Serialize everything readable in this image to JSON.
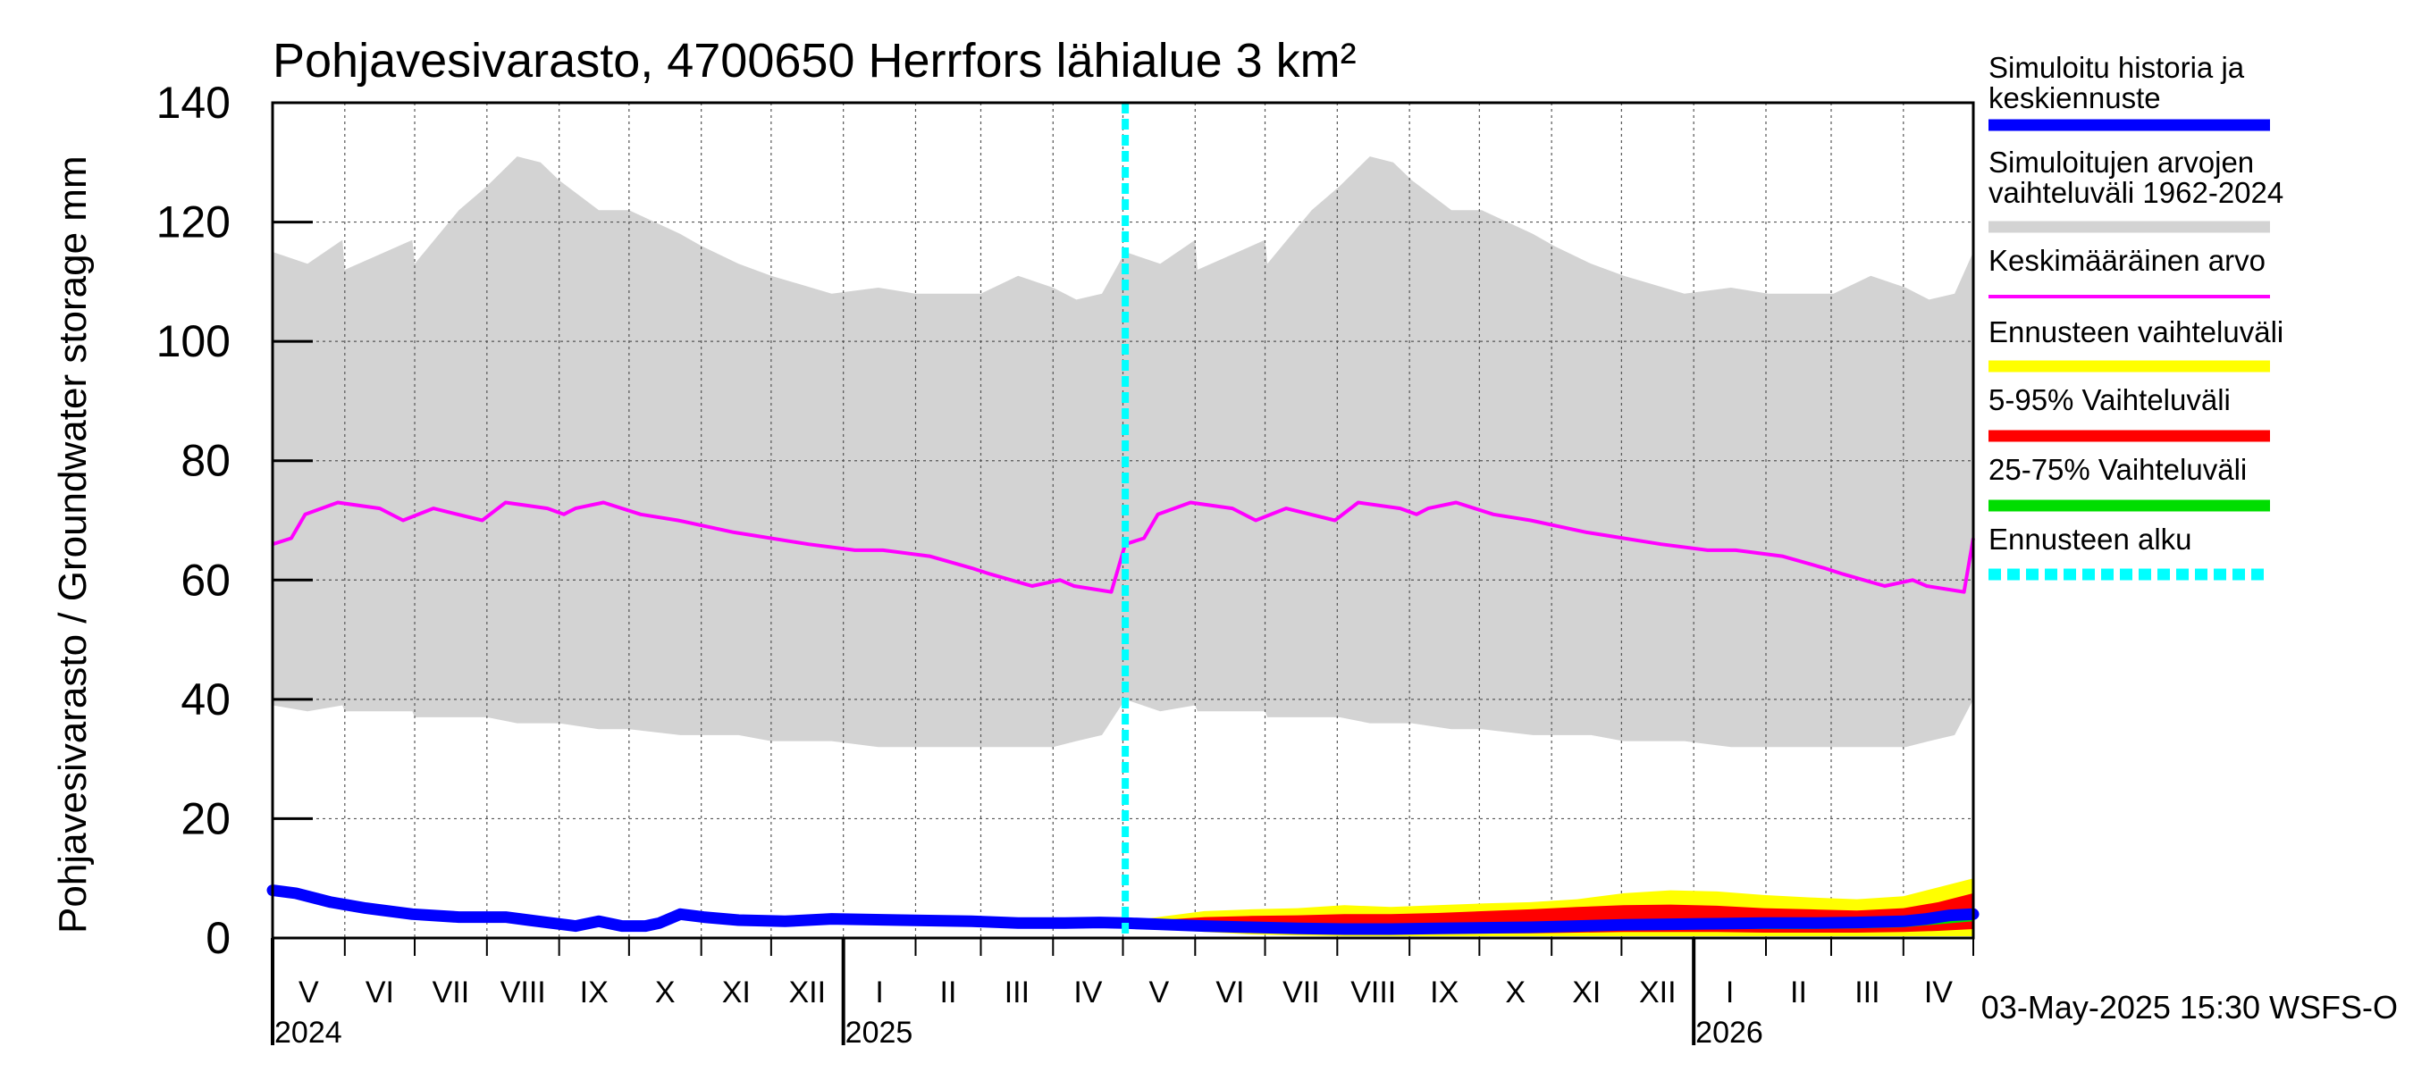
{
  "chart_data": {
    "type": "area",
    "title": "Pohjavesivarasto, 4700650 Herrfors lähialue 3 km²",
    "ylabel": "Pohjavesivarasto / Groundwater storage   mm",
    "ylim": [
      0,
      140
    ],
    "yticks": [
      0,
      20,
      40,
      60,
      80,
      100,
      120,
      140
    ],
    "x_range_days": [
      0,
      730
    ],
    "forecast_start_day": 366,
    "months": [
      {
        "label": "V",
        "start": 0,
        "end": 31
      },
      {
        "label": "VI",
        "start": 31,
        "end": 61
      },
      {
        "label": "VII",
        "start": 61,
        "end": 92
      },
      {
        "label": "VIII",
        "start": 92,
        "end": 123
      },
      {
        "label": "IX",
        "start": 123,
        "end": 153
      },
      {
        "label": "X",
        "start": 153,
        "end": 184
      },
      {
        "label": "XI",
        "start": 184,
        "end": 214
      },
      {
        "label": "XII",
        "start": 214,
        "end": 245
      },
      {
        "label": "I",
        "start": 245,
        "end": 276
      },
      {
        "label": "II",
        "start": 276,
        "end": 304
      },
      {
        "label": "III",
        "start": 304,
        "end": 335
      },
      {
        "label": "IV",
        "start": 335,
        "end": 365
      },
      {
        "label": "V",
        "start": 365,
        "end": 396
      },
      {
        "label": "VI",
        "start": 396,
        "end": 426
      },
      {
        "label": "VII",
        "start": 426,
        "end": 457
      },
      {
        "label": "VIII",
        "start": 457,
        "end": 488
      },
      {
        "label": "IX",
        "start": 488,
        "end": 518
      },
      {
        "label": "X",
        "start": 518,
        "end": 549
      },
      {
        "label": "XI",
        "start": 549,
        "end": 579
      },
      {
        "label": "XII",
        "start": 579,
        "end": 610
      },
      {
        "label": "I",
        "start": 610,
        "end": 641
      },
      {
        "label": "II",
        "start": 641,
        "end": 669
      },
      {
        "label": "III",
        "start": 669,
        "end": 700
      },
      {
        "label": "IV",
        "start": 700,
        "end": 730
      }
    ],
    "years": [
      {
        "label": "2024",
        "day": 0
      },
      {
        "label": "2025",
        "day": 245
      },
      {
        "label": "2026",
        "day": 610
      }
    ],
    "series": [
      {
        "name": "Simuloitujen arvojen vaihteluväli 1962-2024",
        "color": "#d3d3d3",
        "x": [
          0,
          15,
          30,
          31,
          60,
          61,
          80,
          92,
          105,
          115,
          123,
          140,
          153,
          175,
          184,
          200,
          214,
          240,
          260,
          276,
          290,
          304,
          320,
          335,
          345,
          356,
          366,
          381,
          396,
          397,
          426,
          427,
          446,
          458,
          471,
          481,
          489,
          506,
          519,
          541,
          550,
          566,
          580,
          606,
          626,
          642,
          656,
          670,
          686,
          701,
          711,
          722,
          730
        ],
        "upper": [
          115,
          113,
          117,
          112,
          117,
          113,
          122,
          126,
          131,
          130,
          127,
          122,
          122,
          118,
          116,
          113,
          111,
          108,
          109,
          108,
          108,
          108,
          111,
          109,
          107,
          108,
          115,
          113,
          117,
          112,
          117,
          113,
          122,
          126,
          131,
          130,
          127,
          122,
          122,
          118,
          116,
          113,
          111,
          108,
          109,
          108,
          108,
          108,
          111,
          109,
          107,
          108,
          115
        ],
        "lower": [
          39,
          38,
          39,
          38,
          38,
          37,
          37,
          37,
          36,
          36,
          36,
          35,
          35,
          34,
          34,
          34,
          33,
          33,
          32,
          32,
          32,
          32,
          32,
          32,
          33,
          34,
          40,
          38,
          39,
          38,
          38,
          37,
          37,
          37,
          36,
          36,
          36,
          35,
          35,
          34,
          34,
          34,
          33,
          33,
          32,
          32,
          32,
          32,
          32,
          32,
          33,
          34,
          40
        ]
      },
      {
        "name": "Keskimääräinen arvo",
        "color": "#ff00ff",
        "x": [
          0,
          8,
          14,
          28,
          46,
          56,
          69,
          90,
          100,
          118,
          125,
          130,
          142,
          158,
          174,
          198,
          230,
          250,
          262,
          282,
          300,
          308,
          326,
          338,
          344,
          360,
          366,
          374,
          380,
          394,
          412,
          422,
          435,
          456,
          466,
          484,
          491,
          496,
          508,
          524,
          540,
          564,
          596,
          616,
          628,
          648,
          666,
          674,
          692,
          704,
          710,
          726,
          730
        ],
        "values": [
          66,
          67,
          71,
          73,
          72,
          70,
          72,
          70,
          73,
          72,
          71,
          72,
          73,
          71,
          70,
          68,
          66,
          65,
          65,
          64,
          62,
          61,
          59,
          60,
          59,
          58,
          66,
          67,
          71,
          73,
          72,
          70,
          72,
          70,
          73,
          72,
          71,
          72,
          73,
          71,
          70,
          68,
          66,
          65,
          65,
          64,
          62,
          61,
          59,
          60,
          59,
          58,
          67
        ]
      },
      {
        "name": "Simuloitu historia ja keskiennuste",
        "color": "#0000ff",
        "x": [
          0,
          10,
          25,
          40,
          60,
          80,
          100,
          110,
          120,
          130,
          140,
          150,
          160,
          166,
          175,
          185,
          200,
          220,
          240,
          270,
          300,
          320,
          340,
          355,
          366,
          380,
          400,
          420,
          440,
          460,
          480,
          500,
          520,
          540,
          560,
          580,
          600,
          620,
          640,
          660,
          680,
          700,
          710,
          720,
          730
        ],
        "values": [
          8,
          7.5,
          6,
          5,
          4,
          3.5,
          3.5,
          3,
          2.5,
          2,
          2.8,
          2,
          2,
          2.5,
          4,
          3.5,
          3,
          2.8,
          3.2,
          3,
          2.8,
          2.5,
          2.5,
          2.6,
          2.5,
          2.3,
          2,
          1.8,
          1.6,
          1.5,
          1.5,
          1.6,
          1.7,
          1.8,
          2,
          2.2,
          2.3,
          2.4,
          2.5,
          2.5,
          2.6,
          2.8,
          3.2,
          3.8,
          4
        ]
      }
    ],
    "forecast_bands": {
      "x": [
        366,
        380,
        400,
        420,
        440,
        460,
        480,
        500,
        520,
        540,
        560,
        580,
        600,
        620,
        640,
        660,
        680,
        700,
        715,
        730
      ],
      "ennuste_upper": [
        2.8,
        3.5,
        4.5,
        4.8,
        5,
        5.5,
        5.2,
        5.5,
        5.8,
        6,
        6.5,
        7.5,
        8,
        7.8,
        7.2,
        6.8,
        6.5,
        7,
        8.5,
        10
      ],
      "ennuste_lower": [
        2,
        1.5,
        1,
        0.6,
        0.4,
        0.3,
        0.3,
        0.3,
        0.3,
        0.3,
        0.3,
        0.3,
        0.3,
        0.3,
        0.3,
        0.3,
        0.3,
        0.3,
        0.3,
        0.3
      ],
      "p95": [
        2.6,
        3,
        3.5,
        3.7,
        3.8,
        4,
        4,
        4.2,
        4.5,
        4.8,
        5.2,
        5.5,
        5.6,
        5.4,
        5,
        4.8,
        4.6,
        5,
        6,
        7.5
      ],
      "p5": [
        2.1,
        1.8,
        1.4,
        1,
        0.8,
        0.6,
        0.6,
        0.7,
        0.8,
        0.8,
        0.9,
        1,
        1,
        1,
        0.9,
        0.9,
        0.9,
        1,
        1.2,
        1.5
      ],
      "p75": [
        2.5,
        2.6,
        2.6,
        2.5,
        2.4,
        2.3,
        2.3,
        2.4,
        2.5,
        2.6,
        2.8,
        3,
        3.1,
        3,
        2.9,
        2.9,
        3,
        3.3,
        3.8,
        4.5
      ],
      "p25": [
        2.3,
        2.1,
        1.9,
        1.6,
        1.4,
        1.2,
        1.2,
        1.3,
        1.4,
        1.4,
        1.5,
        1.6,
        1.6,
        1.6,
        1.5,
        1.5,
        1.6,
        1.8,
        2.3,
        2.8
      ]
    },
    "legend": [
      {
        "label": "Simuloitu historia ja keskiennuste",
        "color": "#0000ff",
        "style": "solid",
        "weight": "thick"
      },
      {
        "label": "Simuloitujen arvojen vaihteluväli 1962-2024",
        "color": "#d3d3d3",
        "style": "solid",
        "weight": "thick"
      },
      {
        "label": "Keskimääräinen arvo",
        "color": "#ff00ff",
        "style": "solid",
        "weight": "thin"
      },
      {
        "label": "Ennusteen vaihteluväli",
        "color": "#ffff00",
        "style": "solid",
        "weight": "thick"
      },
      {
        "label": "5-95% Vaihteluväli",
        "color": "#ff0000",
        "style": "solid",
        "weight": "thick"
      },
      {
        "label": "25-75% Vaihteluväli",
        "color": "#00dd00",
        "style": "solid",
        "weight": "thick"
      },
      {
        "label": "Ennusteen alku",
        "color": "#00ffff",
        "style": "dashed",
        "weight": "thick"
      }
    ],
    "footer": "03-May-2025 15:30 WSFS-O"
  }
}
